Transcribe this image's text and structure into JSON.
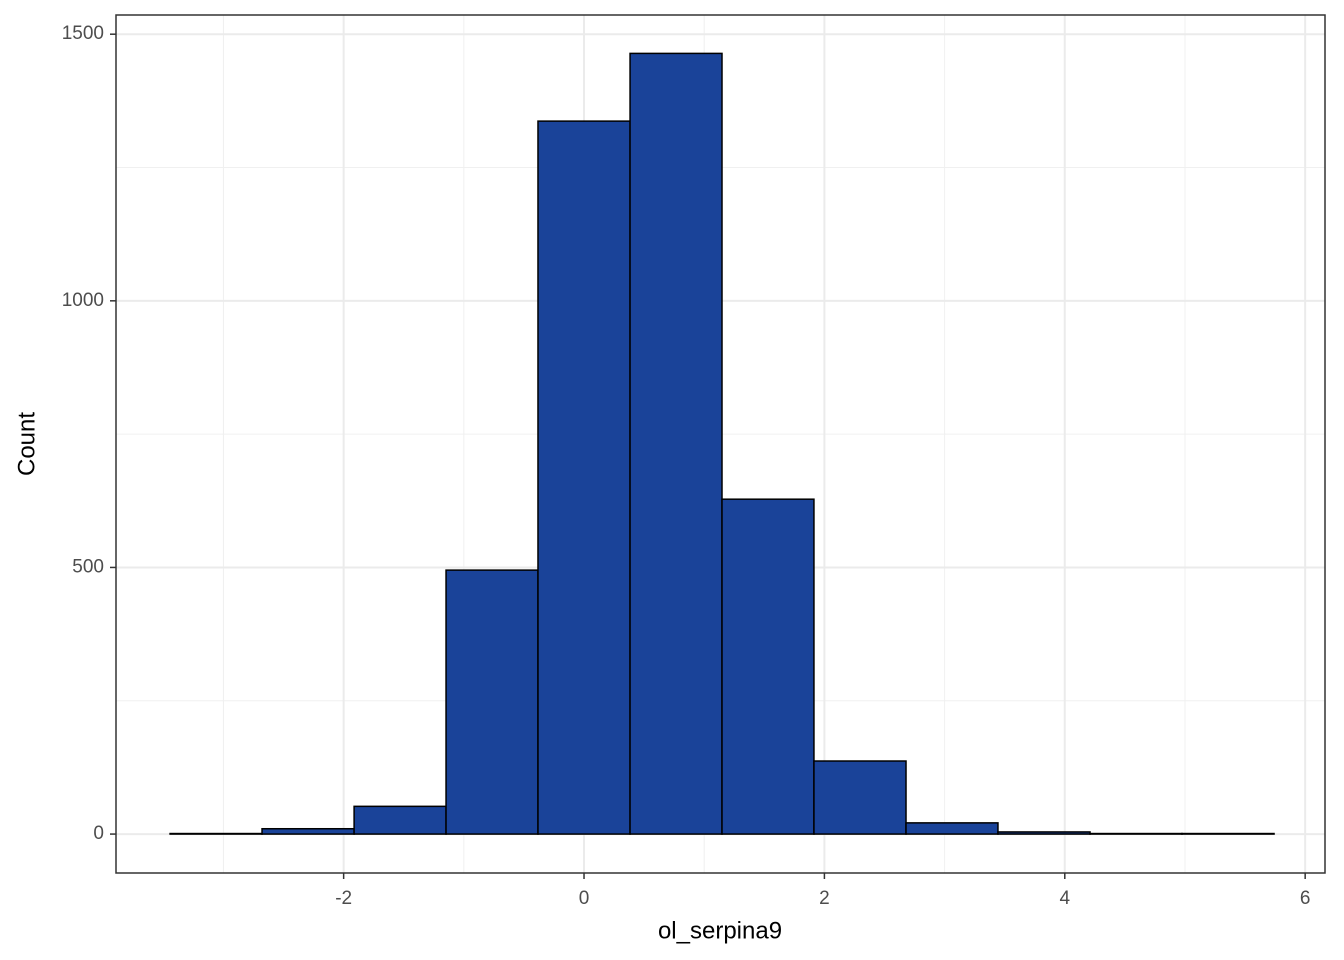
{
  "chart_data": {
    "type": "histogram",
    "xlabel": "ol_serpina9",
    "ylabel": "Count",
    "bins": [
      -3.444,
      -2.679,
      -1.913,
      -1.148,
      -0.383,
      0.383,
      1.148,
      1.913,
      2.679,
      3.444,
      4.21,
      4.975,
      5.741
    ],
    "values": [
      1,
      10,
      52,
      495,
      1337,
      1464,
      628,
      137,
      21,
      4,
      1,
      1
    ],
    "color": "#1a4399",
    "edge_color": "#000000",
    "xlim": [
      -3.894,
      6.165
    ],
    "ylim": [
      -73,
      1536
    ],
    "xticks": [
      -2,
      0,
      2,
      4,
      6
    ],
    "yticks": [
      0,
      500,
      1000,
      1500
    ],
    "x_minor_ticks": [
      -3,
      -1,
      1,
      3,
      5
    ],
    "y_minor_ticks": [
      250,
      750,
      1250
    ],
    "grid": true
  }
}
